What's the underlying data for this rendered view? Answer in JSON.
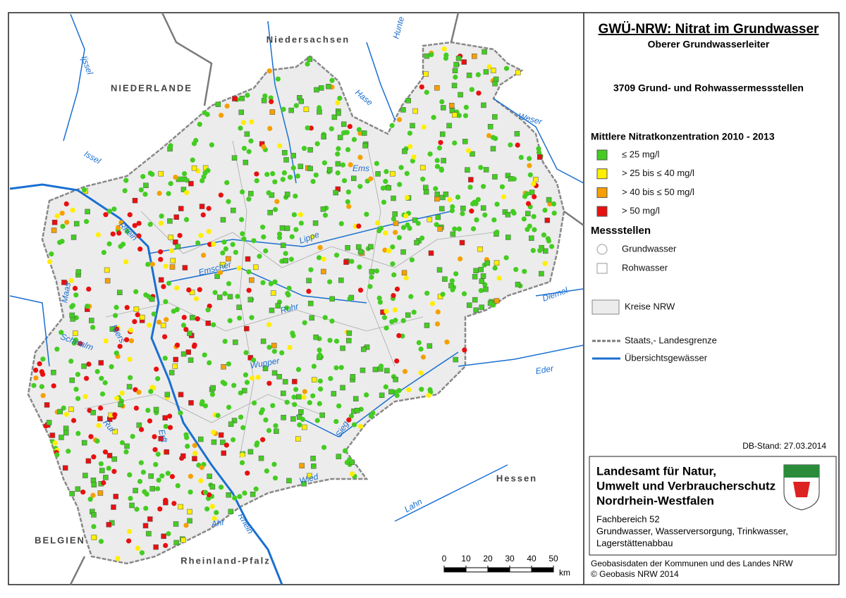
{
  "title": "GWÜ-NRW: Nitrat im Grundwasser",
  "subtitle": "Oberer Grundwasserleiter",
  "count": "3709 Grund- und Rohwassermessstellen",
  "legend": {
    "heading": "Mittlere Nitratkonzentration 2010 - 2013",
    "classes": [
      {
        "label": "≤ 25 mg/l",
        "color": "#44cc22"
      },
      {
        "label": "> 25 bis ≤ 40 mg/l",
        "color": "#ffee00"
      },
      {
        "label": "> 40 bis ≤ 50 mg/l",
        "color": "#f5a000"
      },
      {
        "label": "> 50 mg/l",
        "color": "#e81010"
      }
    ],
    "stations_heading": "Messstellen",
    "stations": [
      "Grundwasser",
      "Rohwasser"
    ],
    "districts": "Kreise NRW",
    "border": "Staats,- Landesgrenze",
    "waters": "Übersichtsgewässer"
  },
  "db_stand": "DB-Stand: 27.03.2014",
  "agency": {
    "name": [
      "Landesamt für Natur,",
      "Umwelt und Verbraucherschutz",
      "Nordrhein-Westfalen"
    ],
    "department": [
      "Fachbereich 52",
      "Grundwasser, Wasserversorgung, Trinkwasser,",
      "Lagerstättenabbau"
    ]
  },
  "scale_bar": {
    "ticks": [
      0,
      10,
      20,
      30,
      40,
      50
    ],
    "unit": "km"
  },
  "credits": [
    "Geobasisdaten der Kommunen und des Landes NRW",
    "© Geobasis NRW 2014"
  ],
  "map": {
    "regions": [
      "NIEDERLANDE",
      "Niedersachsen",
      "Hessen",
      "BELGIEN",
      "Rheinland-Pfalz"
    ],
    "rivers": [
      "Ijssel",
      "Hunte",
      "Hase",
      "Weser",
      "Issel",
      "Ems",
      "Rhein",
      "Lippe",
      "Emscher",
      "Maas",
      "Ruhr",
      "Diemel",
      "Schwalm",
      "Niers",
      "Wupper",
      "Eder",
      "Rur",
      "Erft",
      "Sieg",
      "Wied",
      "Lahn",
      "Ahr",
      "Rhein"
    ]
  }
}
